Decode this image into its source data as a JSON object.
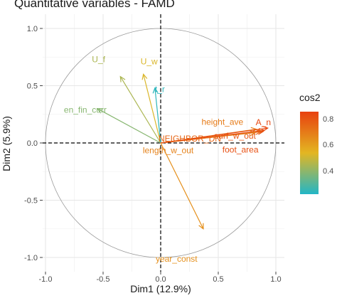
{
  "chart_data": {
    "type": "scatter",
    "title": "Quantitative variables - FAMD",
    "xlabel": "Dim1 (12.9%)",
    "ylabel": "Dim2 (5.9%)",
    "xlim": [
      -1.05,
      1.05
    ],
    "ylim": [
      -1.05,
      1.05
    ],
    "x_ticks": [
      "-1.0",
      "-0.5",
      "0.0",
      "0.5",
      "1.0"
    ],
    "y_ticks": [
      "-1.0",
      "-0.5",
      "0.0",
      "0.5",
      "1.0"
    ],
    "grid": true,
    "correlation_circle": true,
    "legend": {
      "title": "cos2",
      "position": "right",
      "ticks": [
        "0.4",
        "0.6",
        "0.8"
      ],
      "range": [
        0.25,
        0.9
      ],
      "colors": [
        "#22b6c6",
        "#e3b622",
        "#e8410f"
      ]
    },
    "arrows": [
      {
        "label": "U_f",
        "x": -0.35,
        "y": 0.58,
        "cos2": 0.48
      },
      {
        "label": "U_w",
        "x": -0.15,
        "y": 0.6,
        "cos2": 0.56
      },
      {
        "label": "en_fin_curr",
        "x": -0.55,
        "y": 0.3,
        "cos2": 0.42
      },
      {
        "label": "t_r",
        "x": -0.05,
        "y": 0.48,
        "cos2": 0.27
      },
      {
        "label": "height_ave",
        "x": 0.83,
        "y": 0.12,
        "cos2": 0.74
      },
      {
        "label": "A_n",
        "x": 0.93,
        "y": 0.13,
        "cos2": 0.88
      },
      {
        "label": "surf_w_out",
        "x": 0.89,
        "y": 0.1,
        "cos2": 0.84
      },
      {
        "label": "NEIGHBOR_DN",
        "x": 0.87,
        "y": 0.1,
        "cos2": 0.8
      },
      {
        "label": "length_w_out",
        "x": 0.82,
        "y": 0.09,
        "cos2": 0.72
      },
      {
        "label": "foot_area",
        "x": 0.9,
        "y": 0.11,
        "cos2": 0.86
      },
      {
        "label": "year_const",
        "x": 0.37,
        "y": -0.75,
        "cos2": 0.68
      }
    ]
  }
}
